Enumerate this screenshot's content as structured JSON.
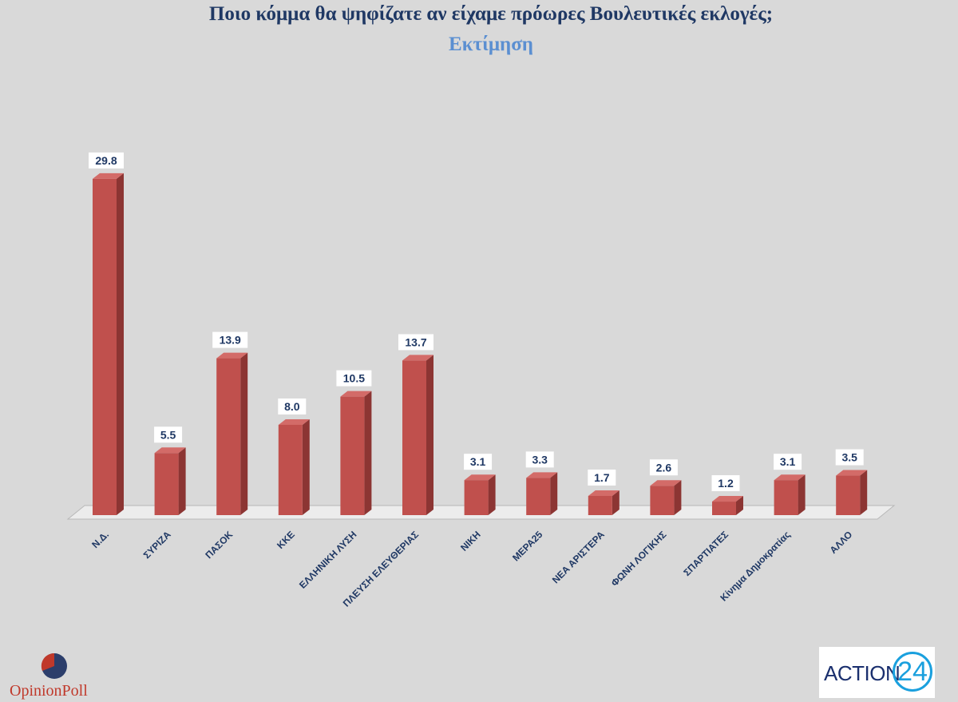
{
  "header": {
    "title": "Ποιο κόμμα θα ψηφίζατε αν είχαμε πρόωρες Βουλευτικές εκλογές;",
    "subtitle": "Εκτίμηση"
  },
  "logos": {
    "left": "OpinionPoll",
    "right_text": "ACTION",
    "right_number": "24"
  },
  "colors": {
    "bar_front": "#c0504d",
    "bar_side": "#8c3533",
    "bar_top": "#d36b68",
    "title": "#1f3864",
    "subtitle": "#5b8fd1",
    "label": "#1f3864"
  },
  "chart_data": {
    "type": "bar",
    "categories": [
      "Ν.Δ.",
      "ΣΥΡΙΖΑ",
      "ΠΑΣΟΚ",
      "ΚΚΕ",
      "ΕΛΛΗΝΙΚΗ ΛΥΣΗ",
      "ΠΛΕΥΣΗ ΕΛΕΥΘΕΡΙΑΣ",
      "ΝΙΚΗ",
      "ΜΕΡΑ25",
      "ΝΕΑ ΑΡΙΣΤΕΡΑ",
      "ΦΩΝΗ ΛΟΓΙΚΗΣ",
      "ΣΠΑΡΤΙΑΤΕΣ",
      "Κίνημα Δημοκρατίας",
      "ΑΛΛΟ"
    ],
    "values": [
      29.8,
      5.5,
      13.9,
      8.0,
      10.5,
      13.7,
      3.1,
      3.3,
      1.7,
      2.6,
      1.2,
      3.1,
      3.5
    ],
    "data_labels": [
      "29.8",
      "5.5",
      "13.9",
      "8.0",
      "10.5",
      "13.7",
      "3.1",
      "3.3",
      "1.7",
      "2.6",
      "1.2",
      "3.1",
      "3.5"
    ],
    "title": "Ποιο κόμμα θα ψηφίζατε αν είχαμε πρόωρες Βουλευτικές εκλογές;",
    "subtitle": "Εκτίμηση",
    "ylim": [
      0,
      30
    ],
    "grid": false,
    "legend": "none",
    "style": "3d-column"
  }
}
